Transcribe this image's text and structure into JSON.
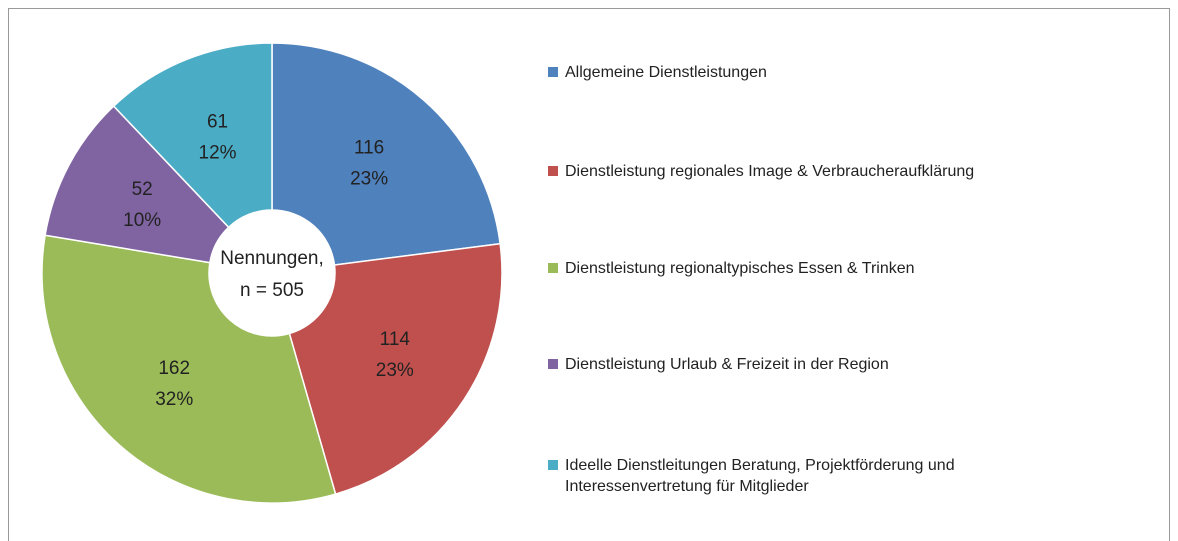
{
  "chart_data": {
    "type": "donut",
    "categories": [
      "Allgemeine Dienstleistungen",
      "Dienstleistung regionales Image & Verbraucheraufklärung",
      "Dienstleistung regionaltypisches Essen & Trinken",
      "Dienstleistung Urlaub & Freizeit in der Region",
      "Ideelle Dienstleitungen Beratung, Projektförderung und Interessenvertretung für Mitglieder"
    ],
    "values": [
      116,
      114,
      162,
      52,
      61
    ],
    "percent_labels": [
      "23%",
      "23%",
      "32%",
      "10%",
      "12%"
    ],
    "colors": [
      "#4f81bd",
      "#c0504d",
      "#9bbb59",
      "#8064a2",
      "#4bacc6"
    ],
    "center_text": [
      "Nennungen,",
      "n = 505"
    ],
    "legend": "right"
  }
}
